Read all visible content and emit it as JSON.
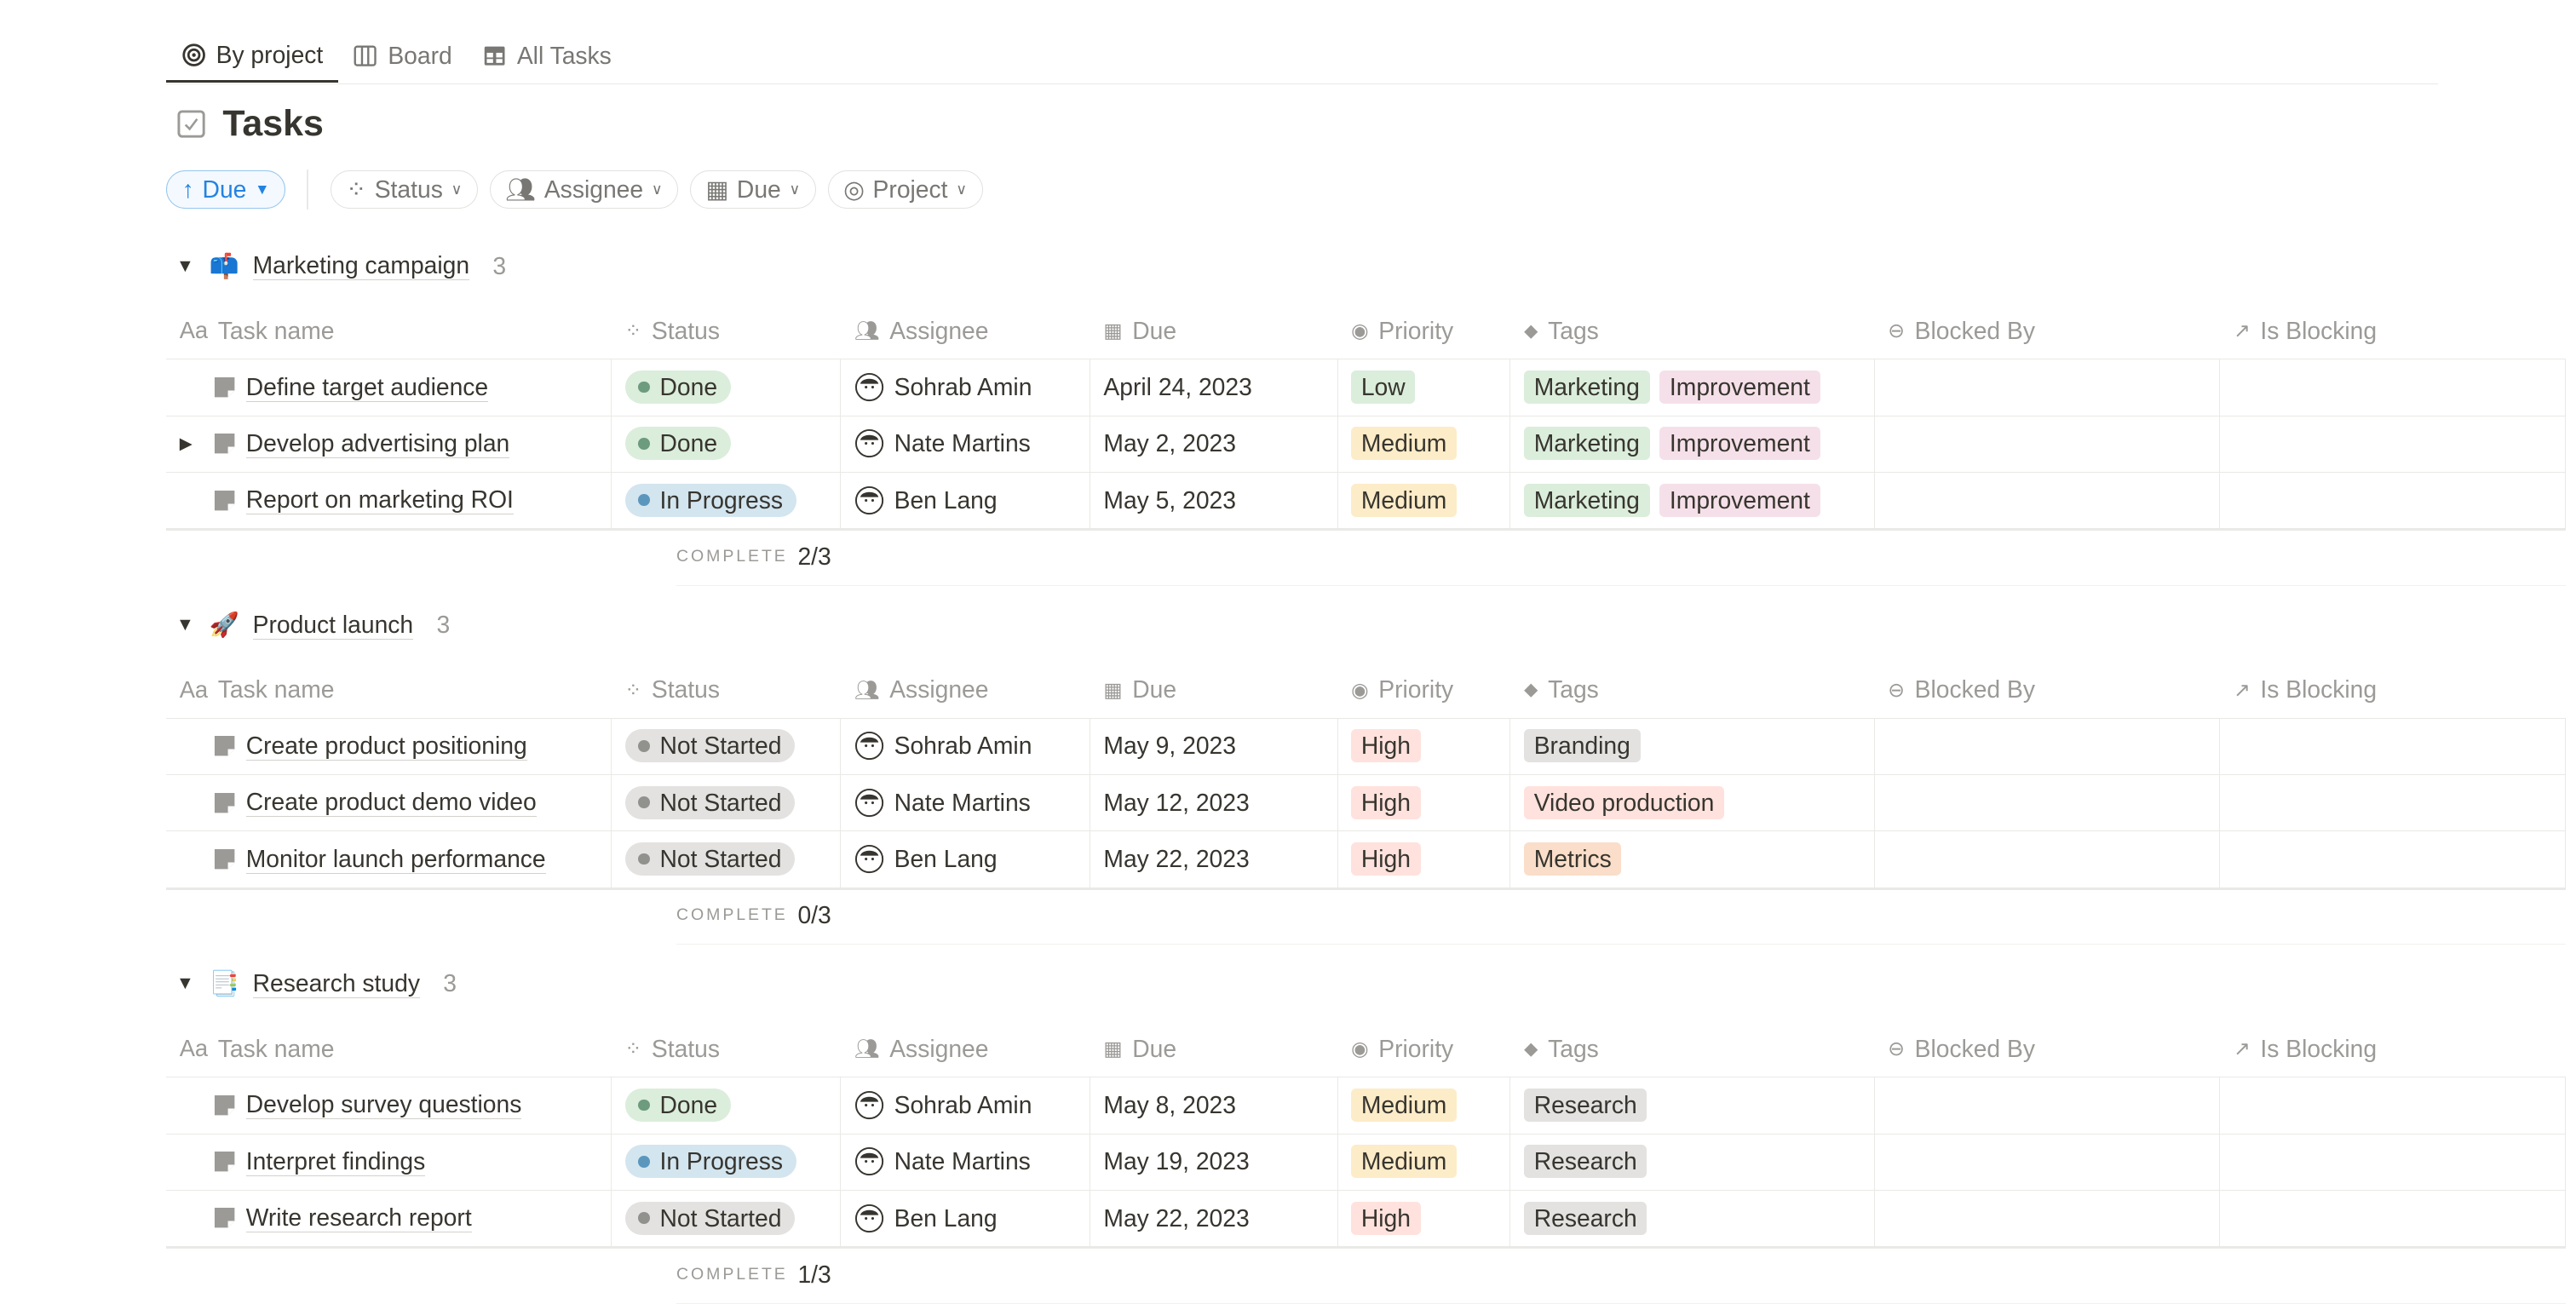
{
  "tabs": [
    {
      "label": "By project",
      "icon": "target-icon",
      "active": true
    },
    {
      "label": "Board",
      "icon": "board-icon"
    },
    {
      "label": "All Tasks",
      "icon": "table-icon"
    }
  ],
  "title": "Tasks",
  "filters": {
    "sort": "Due",
    "items": [
      {
        "label": "Status",
        "icon": "status-icon"
      },
      {
        "label": "Assignee",
        "icon": "people-icon"
      },
      {
        "label": "Due",
        "icon": "calendar-icon"
      },
      {
        "label": "Project",
        "icon": "target-icon"
      }
    ]
  },
  "columns": [
    {
      "label": "Task name",
      "icon": "Aa"
    },
    {
      "label": "Status"
    },
    {
      "label": "Assignee"
    },
    {
      "label": "Due"
    },
    {
      "label": "Priority"
    },
    {
      "label": "Tags"
    },
    {
      "label": "Blocked By"
    },
    {
      "label": "Is Blocking"
    }
  ],
  "complete_label": "COMPLETE",
  "colors": {
    "status": {
      "Done": [
        "#dbeddb",
        "#6c9b7d"
      ],
      "In Progress": [
        "#d3e5ef",
        "#5b97bd"
      ],
      "Not Started": [
        "#e3e2e0",
        "#91918e"
      ]
    },
    "priority": {
      "Low": "#dbeddb",
      "Medium": "#fdecc8",
      "High": "#ffe2dd"
    },
    "tags": {
      "Marketing": "#dbeddb",
      "Improvement": "#f5e0e9",
      "Branding": "#e3e2e0",
      "Video production": "#ffe2dd",
      "Metrics": "#fadec9",
      "Research": "#e3e2e0"
    }
  },
  "groups": [
    {
      "name": "Marketing campaign",
      "emoji": "📫",
      "count": "3",
      "complete": "2/3",
      "rows": [
        {
          "name": "Define target audience",
          "status": "Done",
          "assignee": "Sohrab Amin",
          "due": "April 24, 2023",
          "priority": "Low",
          "tags": [
            "Marketing",
            "Improvement"
          ]
        },
        {
          "name": "Develop advertising plan",
          "status": "Done",
          "assignee": "Nate Martins",
          "due": "May 2, 2023",
          "priority": "Medium",
          "tags": [
            "Marketing",
            "Improvement"
          ],
          "expandable": true
        },
        {
          "name": "Report on marketing ROI",
          "status": "In Progress",
          "assignee": "Ben Lang",
          "due": "May 5, 2023",
          "priority": "Medium",
          "tags": [
            "Marketing",
            "Improvement"
          ]
        }
      ]
    },
    {
      "name": "Product launch",
      "emoji": "🚀",
      "count": "3",
      "complete": "0/3",
      "rows": [
        {
          "name": "Create product positioning",
          "status": "Not Started",
          "assignee": "Sohrab Amin",
          "due": "May 9, 2023",
          "priority": "High",
          "tags": [
            "Branding"
          ]
        },
        {
          "name": "Create product demo video",
          "status": "Not Started",
          "assignee": "Nate Martins",
          "due": "May 12, 2023",
          "priority": "High",
          "tags": [
            "Video production"
          ]
        },
        {
          "name": "Monitor launch performance",
          "status": "Not Started",
          "assignee": "Ben Lang",
          "due": "May 22, 2023",
          "priority": "High",
          "tags": [
            "Metrics"
          ]
        }
      ]
    },
    {
      "name": "Research study",
      "emoji": "📑",
      "count": "3",
      "complete": "1/3",
      "rows": [
        {
          "name": "Develop survey questions",
          "status": "Done",
          "assignee": "Sohrab Amin",
          "due": "May 8, 2023",
          "priority": "Medium",
          "tags": [
            "Research"
          ]
        },
        {
          "name": "Interpret findings",
          "status": "In Progress",
          "assignee": "Nate Martins",
          "due": "May 19, 2023",
          "priority": "Medium",
          "tags": [
            "Research"
          ]
        },
        {
          "name": "Write research report",
          "status": "Not Started",
          "assignee": "Ben Lang",
          "due": "May 22, 2023",
          "priority": "High",
          "tags": [
            "Research"
          ]
        }
      ]
    }
  ]
}
